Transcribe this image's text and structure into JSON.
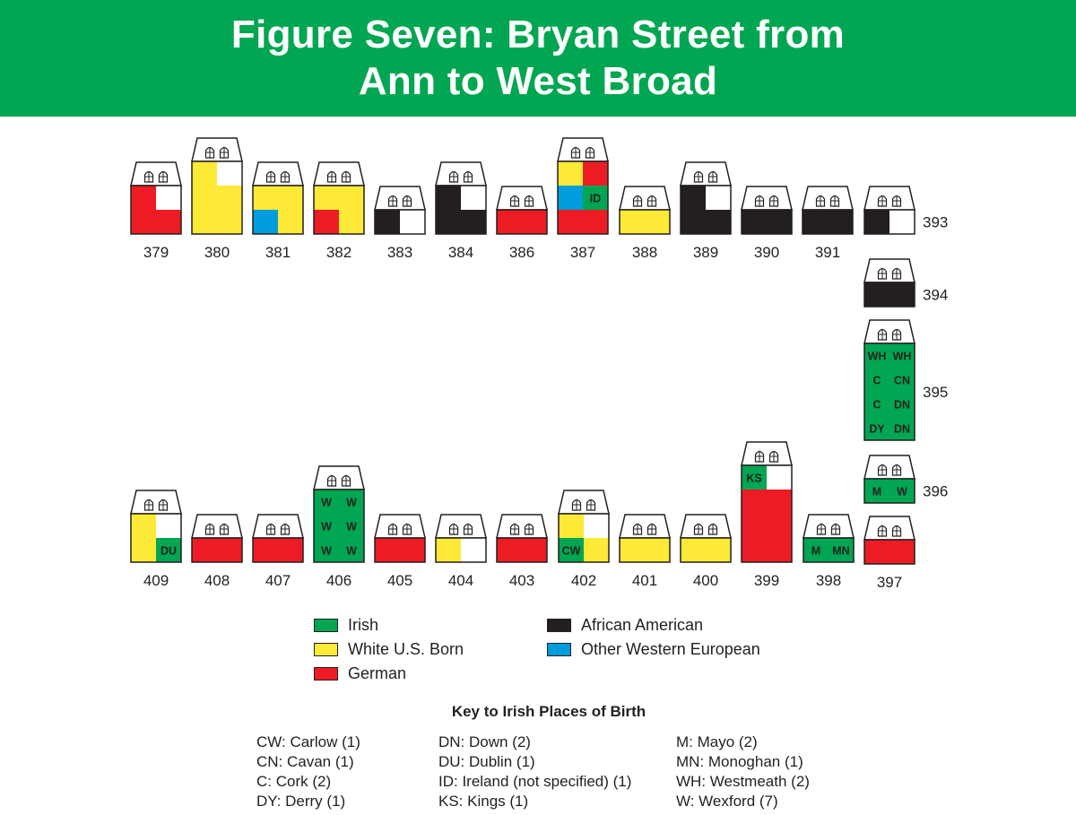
{
  "title": {
    "line1": "Figure Seven: Bryan Street from",
    "line2": "Ann to West Broad"
  },
  "colors": {
    "irish": "#00a651",
    "white_us_born": "#fcea36",
    "german": "#ed1c24",
    "african_american": "#231f20",
    "other_western_european": "#009ddc",
    "vacant": "#ffffff",
    "banner": "#00a651"
  },
  "legend": [
    {
      "label": "Irish",
      "color": "#00a651"
    },
    {
      "label": "White U.S. Born",
      "color": "#fcea36"
    },
    {
      "label": "German",
      "color": "#ed1c24"
    },
    {
      "label": "African American",
      "color": "#231f20"
    },
    {
      "label": "Other Western European",
      "color": "#009ddc"
    }
  ],
  "houses": [
    {
      "number": "379",
      "floors": 2,
      "cells": [
        [
          "R",
          "W"
        ],
        [
          "R",
          "R"
        ]
      ],
      "labels": []
    },
    {
      "number": "380",
      "floors": 3,
      "cells": [
        [
          "Y",
          "W"
        ],
        [
          "Y",
          "Y"
        ],
        [
          "Y",
          "Y"
        ]
      ],
      "labels": []
    },
    {
      "number": "381",
      "floors": 2,
      "cells": [
        [
          "Y",
          "Y"
        ],
        [
          "B",
          "Y"
        ]
      ],
      "labels": []
    },
    {
      "number": "382",
      "floors": 2,
      "cells": [
        [
          "Y",
          "Y"
        ],
        [
          "R",
          "Y"
        ]
      ],
      "labels": []
    },
    {
      "number": "383",
      "floors": 1,
      "cells": [
        [
          "K",
          "W"
        ]
      ],
      "labels": []
    },
    {
      "number": "384",
      "floors": 2,
      "cells": [
        [
          "K",
          "W"
        ],
        [
          "K",
          "K"
        ]
      ],
      "labels": []
    },
    {
      "number": "386",
      "floors": 1,
      "cells": [
        [
          "R",
          "R"
        ]
      ],
      "labels": []
    },
    {
      "number": "387",
      "floors": 3,
      "cells": [
        [
          "Y",
          "R"
        ],
        [
          "B",
          "G"
        ],
        [
          "R",
          "R"
        ]
      ],
      "labels": [
        [
          "",
          ""
        ],
        [
          "",
          "ID"
        ],
        [
          "",
          ""
        ]
      ]
    },
    {
      "number": "388",
      "floors": 1,
      "cells": [
        [
          "Y",
          "Y"
        ]
      ],
      "labels": []
    },
    {
      "number": "389",
      "floors": 2,
      "cells": [
        [
          "K",
          "W"
        ],
        [
          "K",
          "K"
        ]
      ],
      "labels": []
    },
    {
      "number": "390",
      "floors": 1,
      "cells": [
        [
          "K",
          "K"
        ]
      ],
      "labels": []
    },
    {
      "number": "391",
      "floors": 1,
      "cells": [
        [
          "K",
          "K"
        ]
      ],
      "labels": []
    },
    {
      "number": "393",
      "floors": 1,
      "cells": [
        [
          "K",
          "W"
        ]
      ],
      "labels": []
    },
    {
      "number": "394",
      "floors": 1,
      "cells": [
        [
          "K",
          "K"
        ]
      ],
      "labels": []
    },
    {
      "number": "395",
      "floors": 4,
      "cells": [
        [
          "G",
          "G"
        ],
        [
          "G",
          "G"
        ],
        [
          "G",
          "G"
        ],
        [
          "G",
          "G"
        ]
      ],
      "labels": [
        [
          "WH",
          "WH"
        ],
        [
          "C",
          "CN"
        ],
        [
          "C",
          "DN"
        ],
        [
          "DY",
          "DN"
        ]
      ]
    },
    {
      "number": "396",
      "floors": 1,
      "cells": [
        [
          "G",
          "G"
        ]
      ],
      "labels": [
        [
          "M",
          "W"
        ]
      ]
    },
    {
      "number": "397",
      "floors": 1,
      "cells": [
        [
          "R",
          "R"
        ]
      ],
      "labels": []
    },
    {
      "number": "398",
      "floors": 1,
      "cells": [
        [
          "G",
          "G"
        ]
      ],
      "labels": [
        [
          "M",
          "MN"
        ]
      ]
    },
    {
      "number": "399",
      "floors": 4,
      "cells": [
        [
          "G",
          "W"
        ],
        [
          "R",
          "R"
        ],
        [
          "R",
          "R"
        ],
        [
          "R",
          "R"
        ]
      ],
      "labels": [
        [
          "KS",
          ""
        ],
        [
          "",
          ""
        ],
        [
          "",
          ""
        ],
        [
          "",
          ""
        ]
      ]
    },
    {
      "number": "400",
      "floors": 1,
      "cells": [
        [
          "Y",
          "Y"
        ]
      ],
      "labels": []
    },
    {
      "number": "401",
      "floors": 1,
      "cells": [
        [
          "Y",
          "Y"
        ]
      ],
      "labels": []
    },
    {
      "number": "402",
      "floors": 2,
      "cells": [
        [
          "Y",
          "W"
        ],
        [
          "G",
          "Y"
        ]
      ],
      "labels": [
        [
          "",
          ""
        ],
        [
          "CW",
          ""
        ]
      ]
    },
    {
      "number": "403",
      "floors": 1,
      "cells": [
        [
          "R",
          "R"
        ]
      ],
      "labels": []
    },
    {
      "number": "404",
      "floors": 1,
      "cells": [
        [
          "Y",
          "W"
        ]
      ],
      "labels": []
    },
    {
      "number": "405",
      "floors": 1,
      "cells": [
        [
          "R",
          "R"
        ]
      ],
      "labels": []
    },
    {
      "number": "406",
      "floors": 3,
      "cells": [
        [
          "G",
          "G"
        ],
        [
          "G",
          "G"
        ],
        [
          "G",
          "G"
        ]
      ],
      "labels": [
        [
          "W",
          "W"
        ],
        [
          "W",
          "W"
        ],
        [
          "W",
          "W"
        ]
      ]
    },
    {
      "number": "407",
      "floors": 1,
      "cells": [
        [
          "R",
          "R"
        ]
      ],
      "labels": []
    },
    {
      "number": "408",
      "floors": 1,
      "cells": [
        [
          "R",
          "R"
        ]
      ],
      "labels": []
    },
    {
      "number": "409",
      "floors": 2,
      "cells": [
        [
          "Y",
          "W"
        ],
        [
          "Y",
          "G"
        ]
      ],
      "labels": [
        [
          "",
          ""
        ],
        [
          "",
          "DU"
        ]
      ]
    }
  ],
  "key": {
    "title": "Key to Irish Places of Birth",
    "columns": [
      [
        "CW: Carlow (1)",
        "CN: Cavan (1)",
        "C: Cork (2)",
        "DY: Derry (1)"
      ],
      [
        "DN: Down (2)",
        "DU: Dublin (1)",
        "ID: Ireland (not specified) (1)",
        "KS: Kings (1)"
      ],
      [
        "M: Mayo (2)",
        "MN: Monoghan (1)",
        "WH: Westmeath (2)",
        "W: Wexford (7)"
      ]
    ]
  }
}
